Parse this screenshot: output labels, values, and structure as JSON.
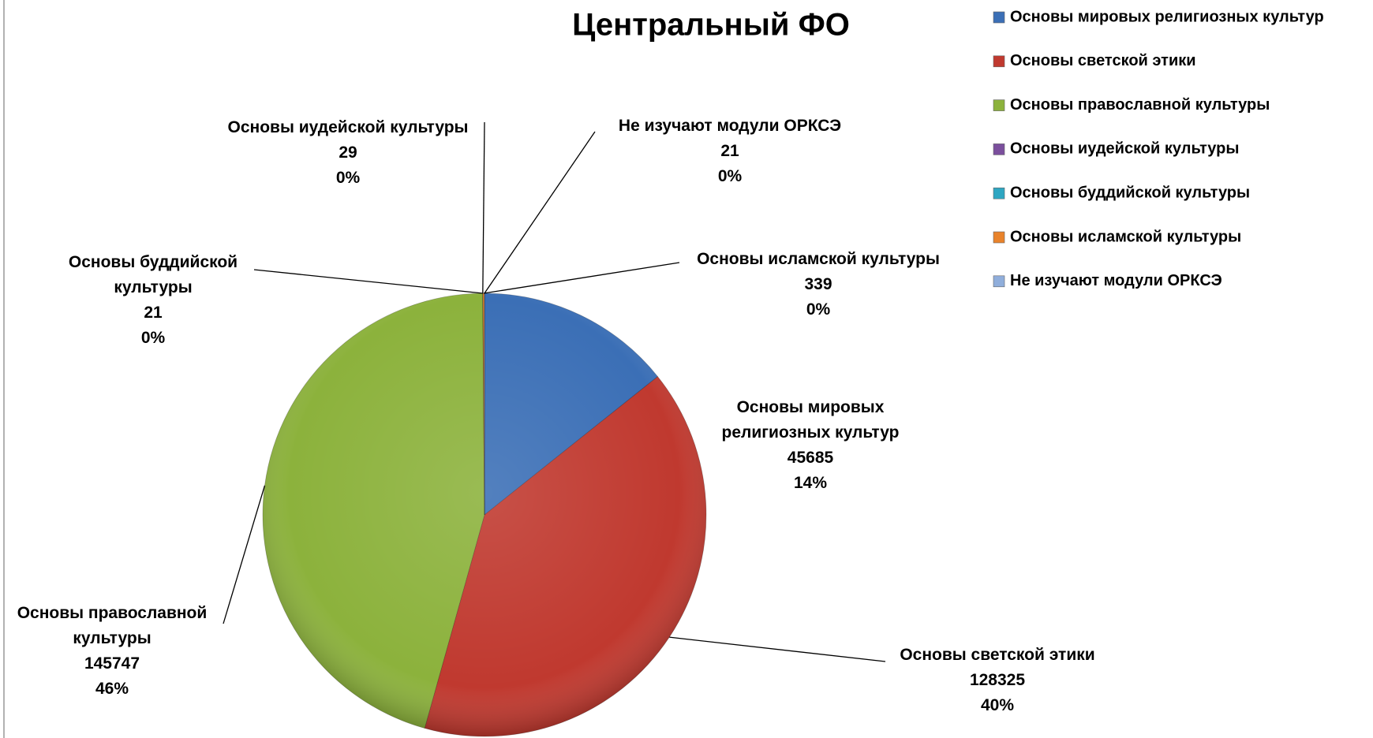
{
  "chart_data": {
    "type": "pie",
    "title": "Центральный ФО",
    "categories": [
      "Основы мировых религиозных культур",
      "Основы светской этики",
      "Основы православной культуры",
      "Основы иудейской культуры",
      "Основы буддийской культуры",
      "Основы исламской культуры",
      "Не изучают модули ОРКСЭ"
    ],
    "values": [
      45685,
      128325,
      145747,
      29,
      21,
      339,
      21
    ],
    "percent_labels": [
      "14%",
      "40%",
      "46%",
      "0%",
      "0%",
      "0%",
      "0%"
    ],
    "colors": [
      "#3b6fb6",
      "#c0392f",
      "#8cb23c",
      "#7b4f9d",
      "#2ea6c2",
      "#e9832b",
      "#90aedb"
    ],
    "legend": "right"
  }
}
